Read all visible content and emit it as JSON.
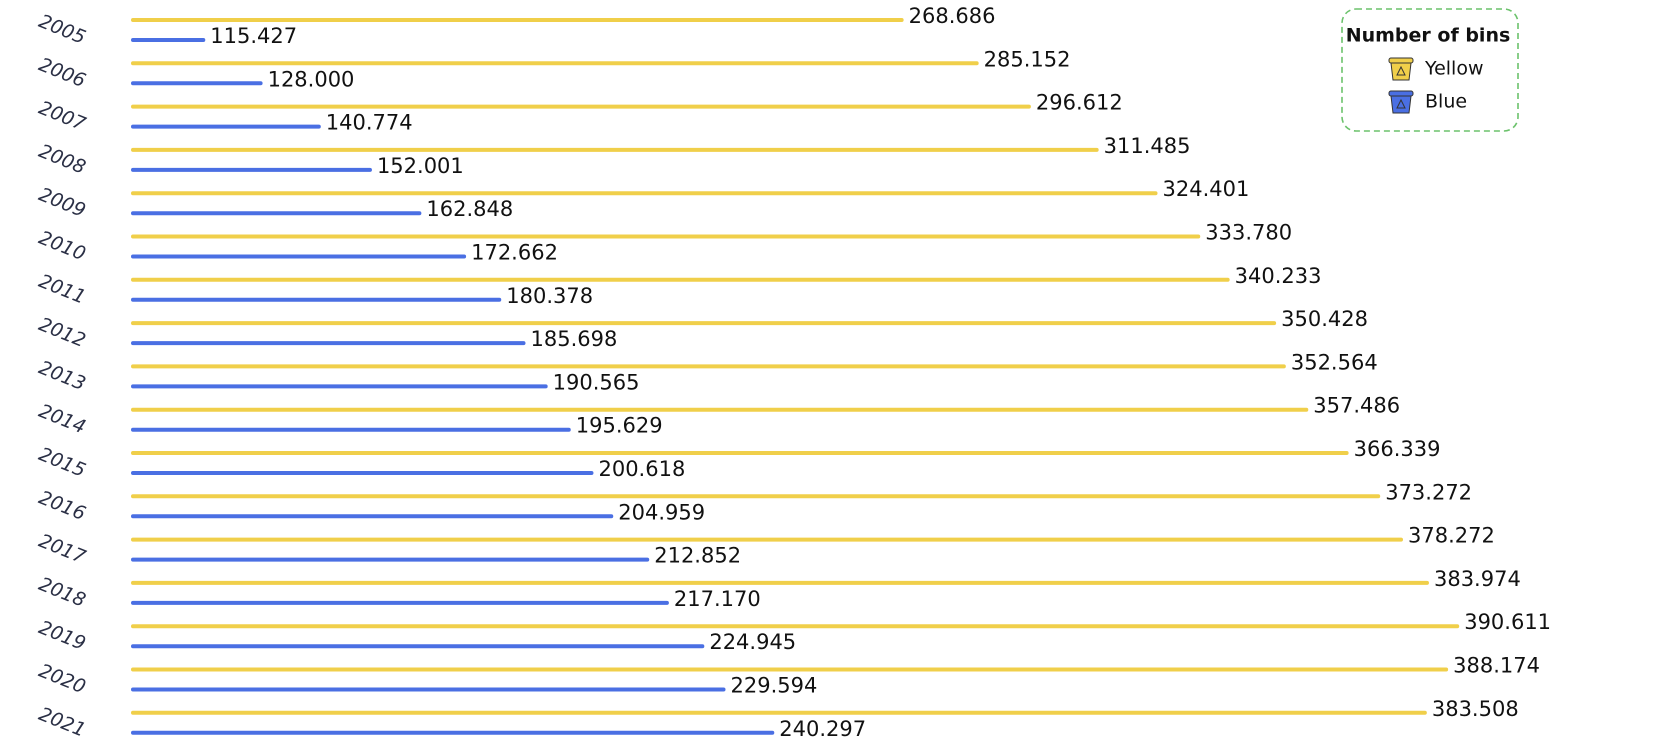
{
  "chart_data": {
    "type": "bar",
    "orientation": "horizontal",
    "categories": [
      "2005",
      "2006",
      "2007",
      "2008",
      "2009",
      "2010",
      "2011",
      "2012",
      "2013",
      "2014",
      "2015",
      "2016",
      "2017",
      "2018",
      "2019",
      "2020",
      "2021"
    ],
    "series": [
      {
        "name": "Yellow",
        "color": "#f0cf4a",
        "values": [
          268.686,
          285.152,
          296.612,
          311.485,
          324.401,
          333.78,
          340.233,
          350.428,
          352.564,
          357.486,
          366.339,
          373.272,
          378.272,
          383.974,
          390.611,
          388.174,
          383.508
        ],
        "value_labels": [
          "268.686",
          "285.152",
          "296.612",
          "311.485",
          "324.401",
          "333.780",
          "340.233",
          "350.428",
          "352.564",
          "357.486",
          "366.339",
          "373.272",
          "378.272",
          "383.974",
          "390.611",
          "388.174",
          "383.508"
        ]
      },
      {
        "name": "Blue",
        "color": "#4a6fe3",
        "values": [
          115.427,
          128.0,
          140.774,
          152.001,
          162.848,
          172.662,
          180.378,
          185.698,
          190.565,
          195.629,
          200.618,
          204.959,
          212.852,
          217.17,
          224.945,
          229.594,
          240.297
        ],
        "value_labels": [
          "115.427",
          "128.000",
          "140.774",
          "152.001",
          "162.848",
          "172.662",
          "180.378",
          "185.698",
          "190.565",
          "195.629",
          "200.618",
          "204.959",
          "212.852",
          "217.170",
          "224.945",
          "229.594",
          "240.297"
        ]
      }
    ],
    "xlim": [
      100,
      400
    ],
    "legend_title": "Number of bins",
    "legend": "top-right"
  }
}
